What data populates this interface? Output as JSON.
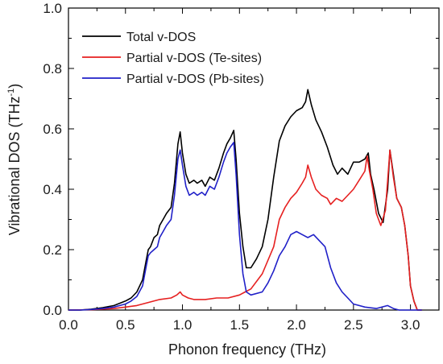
{
  "chart_data": {
    "type": "line",
    "xlabel": "Phonon frequency (THz)",
    "ylabel_main": "Vibrational DOS (THz",
    "ylabel_sup": "-1",
    "ylabel_close": ")",
    "xlim": [
      0.0,
      3.25
    ],
    "ylim": [
      0.0,
      1.0
    ],
    "xticks": [
      "0.0",
      "0.5",
      "1.0",
      "1.5",
      "2.0",
      "2.5",
      "3.0"
    ],
    "yticks": [
      "0.0",
      "0.2",
      "0.4",
      "0.6",
      "0.8",
      "1.0"
    ],
    "legend_position": "top-left",
    "series": [
      {
        "name": "Total v-DOS",
        "color": "#000000",
        "points": [
          [
            0.0,
            0.0
          ],
          [
            0.1,
            0.0
          ],
          [
            0.2,
            0.003
          ],
          [
            0.3,
            0.008
          ],
          [
            0.4,
            0.015
          ],
          [
            0.5,
            0.03
          ],
          [
            0.55,
            0.04
          ],
          [
            0.6,
            0.06
          ],
          [
            0.65,
            0.1
          ],
          [
            0.68,
            0.16
          ],
          [
            0.7,
            0.2
          ],
          [
            0.72,
            0.21
          ],
          [
            0.75,
            0.24
          ],
          [
            0.78,
            0.25
          ],
          [
            0.8,
            0.28
          ],
          [
            0.83,
            0.3
          ],
          [
            0.86,
            0.32
          ],
          [
            0.9,
            0.34
          ],
          [
            0.93,
            0.42
          ],
          [
            0.96,
            0.55
          ],
          [
            0.98,
            0.59
          ],
          [
            1.0,
            0.52
          ],
          [
            1.03,
            0.45
          ],
          [
            1.06,
            0.42
          ],
          [
            1.1,
            0.43
          ],
          [
            1.13,
            0.42
          ],
          [
            1.17,
            0.43
          ],
          [
            1.2,
            0.41
          ],
          [
            1.24,
            0.44
          ],
          [
            1.28,
            0.43
          ],
          [
            1.32,
            0.47
          ],
          [
            1.36,
            0.52
          ],
          [
            1.39,
            0.55
          ],
          [
            1.42,
            0.57
          ],
          [
            1.45,
            0.595
          ],
          [
            1.47,
            0.5
          ],
          [
            1.5,
            0.32
          ],
          [
            1.53,
            0.21
          ],
          [
            1.56,
            0.14
          ],
          [
            1.6,
            0.14
          ],
          [
            1.65,
            0.17
          ],
          [
            1.7,
            0.21
          ],
          [
            1.75,
            0.3
          ],
          [
            1.8,
            0.44
          ],
          [
            1.85,
            0.56
          ],
          [
            1.9,
            0.61
          ],
          [
            1.95,
            0.64
          ],
          [
            2.0,
            0.66
          ],
          [
            2.05,
            0.67
          ],
          [
            2.08,
            0.69
          ],
          [
            2.1,
            0.73
          ],
          [
            2.13,
            0.68
          ],
          [
            2.17,
            0.63
          ],
          [
            2.22,
            0.59
          ],
          [
            2.27,
            0.54
          ],
          [
            2.32,
            0.48
          ],
          [
            2.36,
            0.45
          ],
          [
            2.4,
            0.47
          ],
          [
            2.45,
            0.45
          ],
          [
            2.5,
            0.49
          ],
          [
            2.55,
            0.49
          ],
          [
            2.6,
            0.5
          ],
          [
            2.63,
            0.52
          ],
          [
            2.65,
            0.45
          ],
          [
            2.68,
            0.4
          ],
          [
            2.72,
            0.32
          ],
          [
            2.76,
            0.29
          ],
          [
            2.8,
            0.4
          ],
          [
            2.82,
            0.53
          ],
          [
            2.85,
            0.45
          ],
          [
            2.88,
            0.37
          ],
          [
            2.92,
            0.34
          ],
          [
            2.95,
            0.28
          ],
          [
            2.98,
            0.18
          ],
          [
            3.0,
            0.08
          ],
          [
            3.03,
            0.03
          ],
          [
            3.06,
            0.0
          ],
          [
            3.1,
            0.0
          ]
        ]
      },
      {
        "name": "Partial v-DOS (Te-sites)",
        "color": "#e62020",
        "points": [
          [
            0.0,
            0.0
          ],
          [
            0.2,
            0.001
          ],
          [
            0.4,
            0.005
          ],
          [
            0.5,
            0.01
          ],
          [
            0.6,
            0.015
          ],
          [
            0.7,
            0.025
          ],
          [
            0.8,
            0.035
          ],
          [
            0.9,
            0.04
          ],
          [
            0.95,
            0.05
          ],
          [
            0.98,
            0.06
          ],
          [
            1.0,
            0.05
          ],
          [
            1.05,
            0.04
          ],
          [
            1.1,
            0.035
          ],
          [
            1.2,
            0.035
          ],
          [
            1.3,
            0.04
          ],
          [
            1.4,
            0.04
          ],
          [
            1.5,
            0.05
          ],
          [
            1.55,
            0.06
          ],
          [
            1.6,
            0.07
          ],
          [
            1.7,
            0.12
          ],
          [
            1.8,
            0.21
          ],
          [
            1.85,
            0.3
          ],
          [
            1.9,
            0.34
          ],
          [
            1.95,
            0.37
          ],
          [
            2.0,
            0.39
          ],
          [
            2.05,
            0.42
          ],
          [
            2.08,
            0.44
          ],
          [
            2.1,
            0.48
          ],
          [
            2.13,
            0.44
          ],
          [
            2.17,
            0.4
          ],
          [
            2.22,
            0.38
          ],
          [
            2.27,
            0.37
          ],
          [
            2.3,
            0.35
          ],
          [
            2.35,
            0.37
          ],
          [
            2.4,
            0.36
          ],
          [
            2.45,
            0.38
          ],
          [
            2.5,
            0.4
          ],
          [
            2.55,
            0.43
          ],
          [
            2.6,
            0.46
          ],
          [
            2.62,
            0.51
          ],
          [
            2.64,
            0.46
          ],
          [
            2.67,
            0.4
          ],
          [
            2.7,
            0.32
          ],
          [
            2.74,
            0.28
          ],
          [
            2.78,
            0.33
          ],
          [
            2.82,
            0.53
          ],
          [
            2.85,
            0.44
          ],
          [
            2.88,
            0.37
          ],
          [
            2.92,
            0.34
          ],
          [
            2.95,
            0.28
          ],
          [
            2.98,
            0.18
          ],
          [
            3.0,
            0.08
          ],
          [
            3.03,
            0.03
          ],
          [
            3.06,
            0.0
          ],
          [
            3.1,
            0.0
          ]
        ]
      },
      {
        "name": "Partial v-DOS (Pb-sites)",
        "color": "#2020c8",
        "points": [
          [
            0.0,
            0.0
          ],
          [
            0.1,
            0.0
          ],
          [
            0.2,
            0.002
          ],
          [
            0.3,
            0.005
          ],
          [
            0.4,
            0.01
          ],
          [
            0.5,
            0.02
          ],
          [
            0.55,
            0.03
          ],
          [
            0.6,
            0.045
          ],
          [
            0.65,
            0.08
          ],
          [
            0.68,
            0.14
          ],
          [
            0.7,
            0.18
          ],
          [
            0.72,
            0.19
          ],
          [
            0.75,
            0.2
          ],
          [
            0.78,
            0.21
          ],
          [
            0.8,
            0.24
          ],
          [
            0.83,
            0.26
          ],
          [
            0.86,
            0.28
          ],
          [
            0.9,
            0.3
          ],
          [
            0.93,
            0.38
          ],
          [
            0.96,
            0.5
          ],
          [
            0.98,
            0.53
          ],
          [
            1.0,
            0.48
          ],
          [
            1.03,
            0.41
          ],
          [
            1.06,
            0.38
          ],
          [
            1.1,
            0.39
          ],
          [
            1.13,
            0.38
          ],
          [
            1.17,
            0.39
          ],
          [
            1.2,
            0.38
          ],
          [
            1.24,
            0.41
          ],
          [
            1.28,
            0.4
          ],
          [
            1.32,
            0.44
          ],
          [
            1.36,
            0.49
          ],
          [
            1.39,
            0.52
          ],
          [
            1.42,
            0.54
          ],
          [
            1.45,
            0.555
          ],
          [
            1.47,
            0.45
          ],
          [
            1.5,
            0.25
          ],
          [
            1.53,
            0.12
          ],
          [
            1.56,
            0.06
          ],
          [
            1.6,
            0.05
          ],
          [
            1.7,
            0.06
          ],
          [
            1.75,
            0.09
          ],
          [
            1.8,
            0.13
          ],
          [
            1.85,
            0.18
          ],
          [
            1.9,
            0.21
          ],
          [
            1.95,
            0.25
          ],
          [
            2.0,
            0.26
          ],
          [
            2.05,
            0.25
          ],
          [
            2.1,
            0.24
          ],
          [
            2.15,
            0.25
          ],
          [
            2.2,
            0.23
          ],
          [
            2.25,
            0.21
          ],
          [
            2.3,
            0.14
          ],
          [
            2.35,
            0.09
          ],
          [
            2.4,
            0.06
          ],
          [
            2.45,
            0.04
          ],
          [
            2.5,
            0.02
          ],
          [
            2.6,
            0.01
          ],
          [
            2.7,
            0.005
          ],
          [
            2.8,
            0.015
          ],
          [
            2.85,
            0.005
          ],
          [
            2.9,
            0.0
          ],
          [
            3.1,
            0.0
          ]
        ]
      }
    ]
  }
}
